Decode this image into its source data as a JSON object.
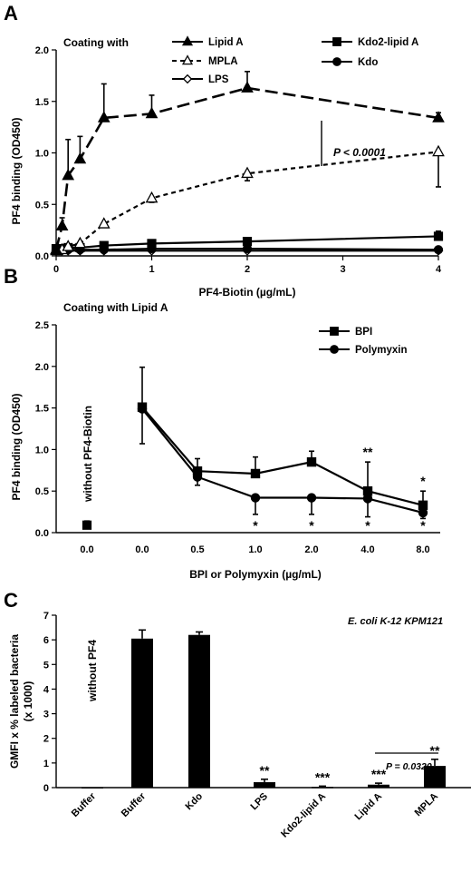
{
  "panels": [
    {
      "letter": "A",
      "coating_label": "Coating with",
      "stat_label": "P < 0.0001"
    },
    {
      "letter": "B",
      "coating_label": "Coating with Lipid A",
      "without_label": "without PF4-Biotin"
    },
    {
      "letter": "C",
      "strain_label": "E. coli K-12 KPM121",
      "without_label": "without PF4",
      "pvalue_label": "P = 0.0320"
    }
  ],
  "chart_data": [
    {
      "type": "line",
      "xlabel": "PF4-Biotin (µg/mL)",
      "ylabel": "PF4 binding (OD450)",
      "xlim": [
        0,
        4
      ],
      "ylim": [
        0,
        2
      ],
      "xticks": [
        "0",
        "1",
        "2",
        "3",
        "4"
      ],
      "yticks": [
        "0.0",
        "0.5",
        "1.0",
        "1.5",
        "2.0"
      ],
      "legend_position": "top",
      "grid": false,
      "series": [
        {
          "name": "Lipid A",
          "marker": "triangle-filled",
          "dash": "long",
          "x": [
            0,
            0.0625,
            0.125,
            0.25,
            0.5,
            1,
            2,
            4
          ],
          "y": [
            0.06,
            0.29,
            0.78,
            0.94,
            1.34,
            1.38,
            1.63,
            1.34
          ],
          "err": [
            0.02,
            0.08,
            0.35,
            0.22,
            0.33,
            0.18,
            0.16,
            0.05
          ]
        },
        {
          "name": "MPLA",
          "marker": "triangle-open",
          "dash": "short",
          "x": [
            0,
            0.0625,
            0.125,
            0.25,
            0.5,
            1,
            2,
            4
          ],
          "y": [
            0.05,
            0.06,
            0.09,
            0.12,
            0.31,
            0.56,
            0.8,
            1.01
          ],
          "err": [
            0.01,
            0.01,
            0.02,
            0.02,
            0.03,
            0.04,
            0.07,
            0.34
          ],
          "err_direction": "down"
        },
        {
          "name": "LPS",
          "marker": "diamond-open",
          "dash": "solid",
          "x": [
            0,
            0.0625,
            0.125,
            0.25,
            0.5,
            1,
            2,
            4
          ],
          "y": [
            0.05,
            0.05,
            0.05,
            0.05,
            0.05,
            0.05,
            0.05,
            0.05
          ],
          "err": [
            0,
            0,
            0,
            0,
            0,
            0,
            0,
            0
          ]
        },
        {
          "name": "Kdo2-lipid A",
          "marker": "square-filled",
          "dash": "solid",
          "x": [
            0,
            0.0625,
            0.125,
            0.25,
            0.5,
            1,
            2,
            4
          ],
          "y": [
            0.07,
            0.07,
            0.08,
            0.08,
            0.1,
            0.12,
            0.14,
            0.19
          ],
          "err": [
            0.01,
            0.01,
            0.01,
            0.01,
            0.02,
            0.03,
            0.03,
            0.05
          ]
        },
        {
          "name": "Kdo",
          "marker": "circle-filled",
          "dash": "solid",
          "x": [
            0,
            0.0625,
            0.125,
            0.25,
            0.5,
            1,
            2,
            4
          ],
          "y": [
            0.06,
            0.06,
            0.06,
            0.06,
            0.06,
            0.07,
            0.07,
            0.06
          ],
          "err": [
            0,
            0,
            0,
            0,
            0,
            0,
            0,
            0
          ]
        }
      ]
    },
    {
      "type": "line",
      "xlabel": "BPI or Polymyxin (µg/mL)",
      "ylabel": "PF4 binding (OD450)",
      "categories": [
        "0.0",
        "0.0",
        "0.5",
        "1.0",
        "2.0",
        "4.0",
        "8.0"
      ],
      "ylim": [
        0,
        2.5
      ],
      "yticks": [
        "0.0",
        "0.5",
        "1.0",
        "1.5",
        "2.0",
        "2.5"
      ],
      "legend_position": "top-right",
      "grid": false,
      "baseline_point": {
        "category_index": 0,
        "value": 0.09,
        "err": 0.05
      },
      "series": [
        {
          "name": "BPI",
          "marker": "square-filled",
          "values": [
            null,
            1.51,
            0.74,
            0.71,
            0.85,
            0.5,
            0.33
          ],
          "err": [
            null,
            0.48,
            0.15,
            0.2,
            0.13,
            0.35,
            0.17
          ]
        },
        {
          "name": "Polymyxin",
          "marker": "circle-filled",
          "values": [
            null,
            1.49,
            0.67,
            0.42,
            0.42,
            0.41,
            0.24
          ],
          "err": [
            null,
            0.42,
            0.1,
            0.2,
            0.2,
            0.22,
            0.07
          ]
        }
      ],
      "annotations": [
        {
          "category_index": 5,
          "text": "**",
          "position": "above"
        },
        {
          "category_index": 6,
          "text": "*",
          "position": "above"
        },
        {
          "category_index": 3,
          "text": "*",
          "position": "below"
        },
        {
          "category_index": 4,
          "text": "*",
          "position": "below"
        },
        {
          "category_index": 5,
          "text": "*",
          "position": "below"
        },
        {
          "category_index": 6,
          "text": "*",
          "position": "below"
        }
      ]
    },
    {
      "type": "bar",
      "ylabel": "GMFI x % labeled bacteria (x 1000)",
      "categories": [
        "Buffer",
        "Buffer",
        "Kdo",
        "LPS",
        "Kdo2-lipid A",
        "Lipid A",
        "MPLA"
      ],
      "values": [
        0.02,
        6.05,
        6.2,
        0.22,
        0.03,
        0.12,
        0.88
      ],
      "err": [
        0,
        0.35,
        0.12,
        0.12,
        0.03,
        0.06,
        0.27
      ],
      "ylim": [
        0,
        7
      ],
      "yticks": [
        "0",
        "1",
        "2",
        "3",
        "4",
        "5",
        "6",
        "7"
      ],
      "grid": false,
      "significance": [
        "",
        "",
        "",
        "**",
        "***",
        "***",
        "**"
      ],
      "comparison": {
        "from_index": 5,
        "to_index": 6
      }
    }
  ]
}
